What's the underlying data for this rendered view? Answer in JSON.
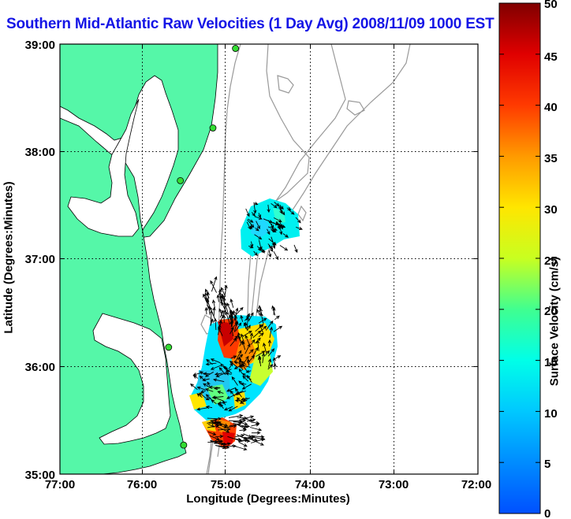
{
  "title": "Southern Mid-Atlantic Raw Velocities (1 Day Avg) 2008/11/09 1000 EST",
  "map": {
    "x_ticks": [
      "77:00",
      "76:00",
      "75:00",
      "74:00",
      "73:00",
      "72:00"
    ],
    "y_ticks": [
      "39:00",
      "38:00",
      "37:00",
      "36:00",
      "35:00"
    ],
    "xlabel": "Longitude (Degrees:Minutes)",
    "ylabel": "Latitude (Degrees:Minutes)",
    "lon_range": [
      -77,
      -72
    ],
    "lat_range": [
      35,
      39
    ],
    "grid": true,
    "colors": {
      "land": "#55f7a8",
      "water": "#ffffff",
      "bathymetry": "#999999",
      "coastline": "#000000",
      "station": "#33dd33"
    },
    "stations": [
      {
        "lon": -74.9,
        "lat": 38.96
      },
      {
        "lon": -75.17,
        "lat": 38.22
      },
      {
        "lon": -75.56,
        "lat": 37.73
      },
      {
        "lon": -75.7,
        "lat": 36.18
      },
      {
        "lon": -75.52,
        "lat": 35.27
      }
    ]
  },
  "colorbar": {
    "label": "Surface Velocity (cm/s)",
    "min": 0,
    "max": 50,
    "ticks": [
      "50",
      "45",
      "40",
      "35",
      "30",
      "25",
      "20",
      "15",
      "10",
      "5",
      "0"
    ]
  }
}
